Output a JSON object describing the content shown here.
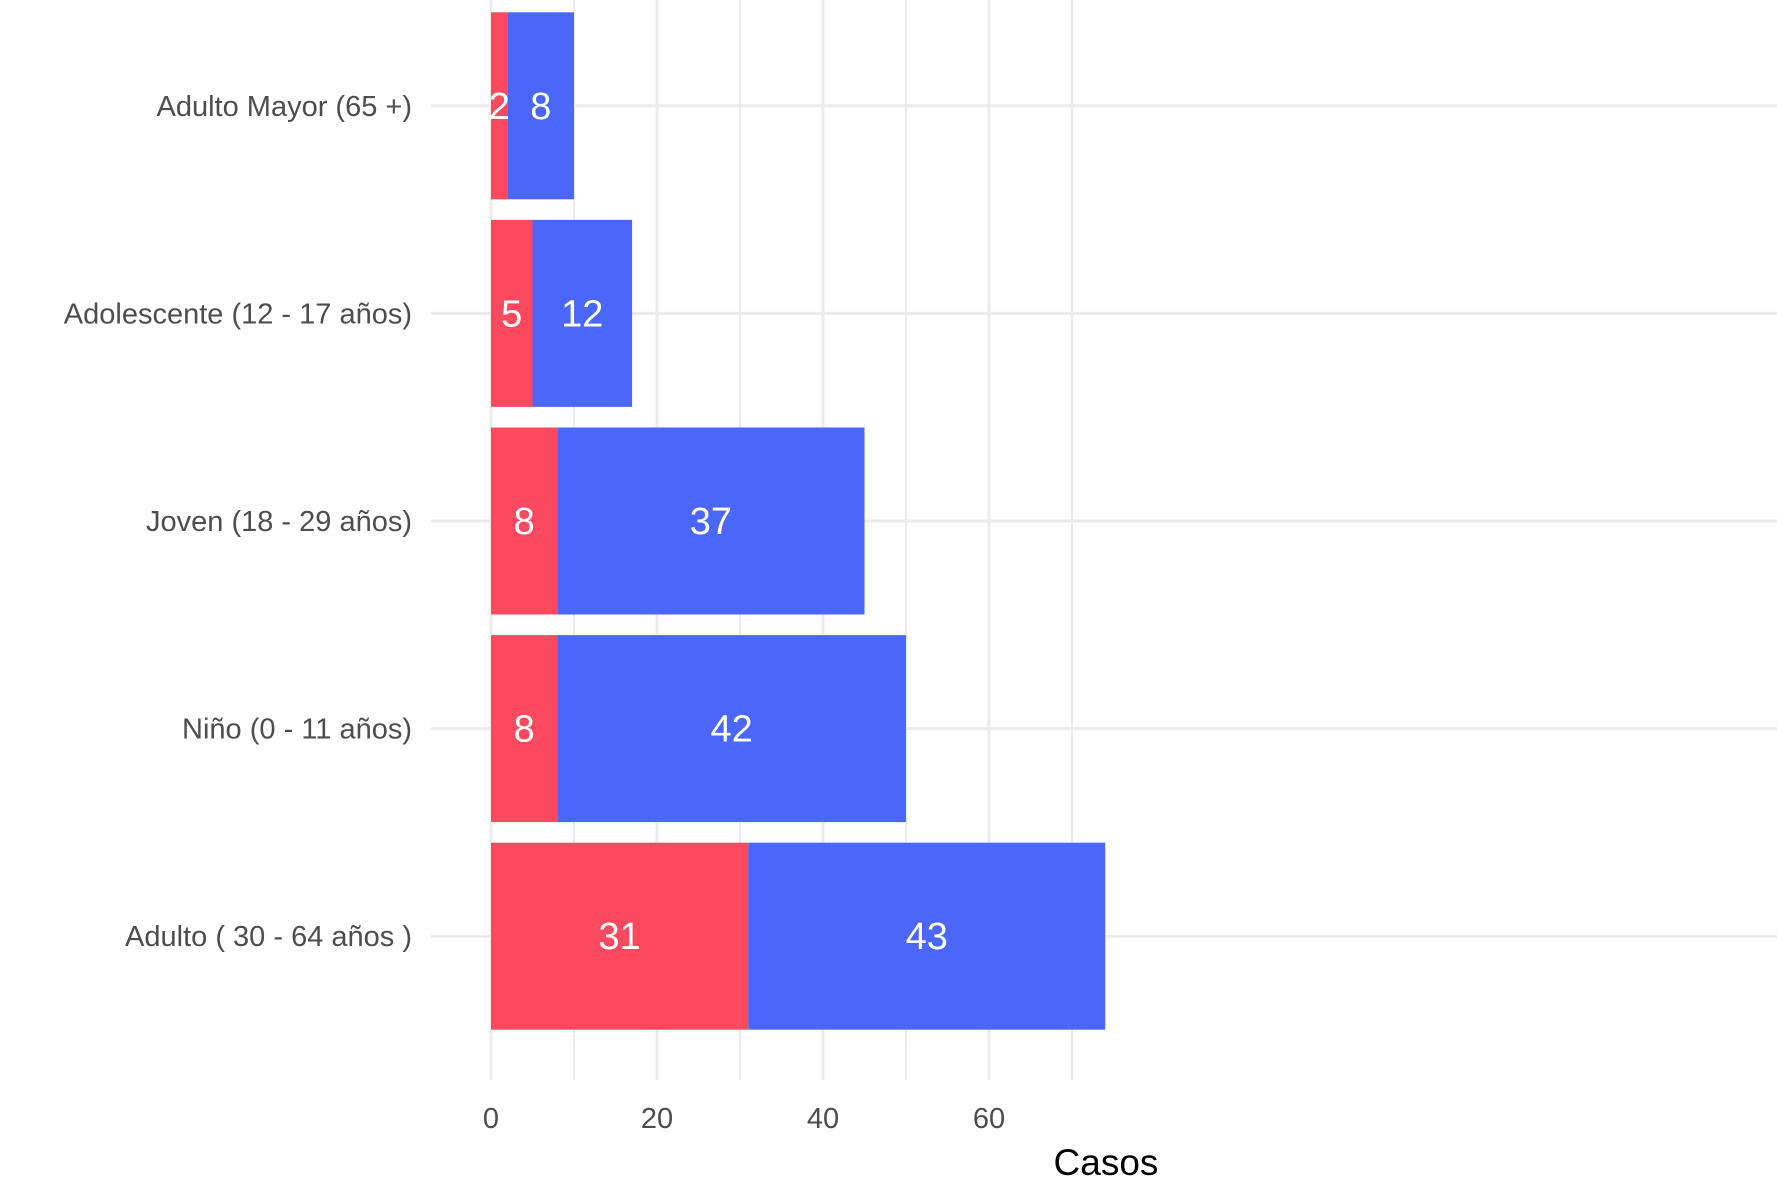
{
  "chart_data": {
    "type": "bar",
    "orientation": "horizontal",
    "stacked": true,
    "categories": [
      "Adulto Mayor (65 +)",
      "Adolescente (12 - 17 años)",
      "Joven (18 - 29 años)",
      "Niño (0 - 11 años)",
      "Adulto ( 30 - 64 años )"
    ],
    "series": [
      {
        "color": "#FB4A5F",
        "values": [
          2,
          5,
          8,
          8,
          31
        ]
      },
      {
        "color": "#4A67FA",
        "values": [
          8,
          12,
          37,
          42,
          43
        ]
      }
    ],
    "xlabel": "Casos",
    "ylabel": "",
    "xlim": [
      0,
      74
    ],
    "xticks": [
      0,
      20,
      40,
      60
    ],
    "grid": true,
    "legend": "none"
  }
}
